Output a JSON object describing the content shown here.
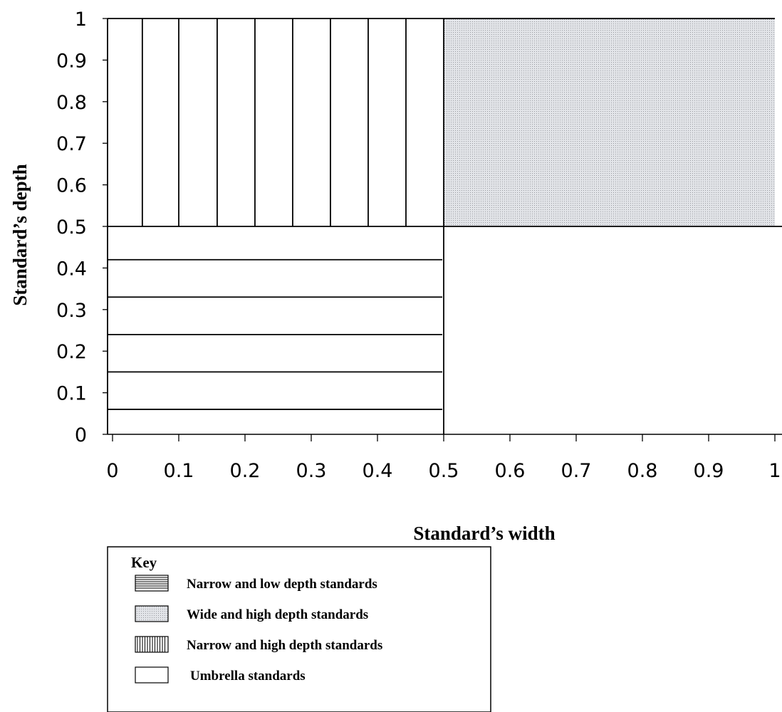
{
  "chart_data": {
    "type": "heatmap",
    "xlabel": "Standard’s width",
    "ylabel": "Standard’s depth",
    "xlim": [
      0,
      1
    ],
    "ylim": [
      0,
      1
    ],
    "x_ticks": [
      {
        "value": 0,
        "label": "0"
      },
      {
        "value": 0.1,
        "label": "0.1"
      },
      {
        "value": 0.2,
        "label": "0.2"
      },
      {
        "value": 0.3,
        "label": "0.3"
      },
      {
        "value": 0.4,
        "label": "0.4"
      },
      {
        "value": 0.5,
        "label": "0.5"
      },
      {
        "value": 0.6,
        "label": "0.6"
      },
      {
        "value": 0.7,
        "label": "0.7"
      },
      {
        "value": 0.8,
        "label": "0.8"
      },
      {
        "value": 0.9,
        "label": "0.9"
      },
      {
        "value": 1,
        "label": "1"
      }
    ],
    "y_ticks": [
      {
        "value": 0,
        "label": "0"
      },
      {
        "value": 0.1,
        "label": "0.1"
      },
      {
        "value": 0.2,
        "label": "0.2"
      },
      {
        "value": 0.3,
        "label": "0.3"
      },
      {
        "value": 0.4,
        "label": "0.4"
      },
      {
        "value": 0.5,
        "label": "0.5"
      },
      {
        "value": 0.6,
        "label": "0.6"
      },
      {
        "value": 0.7,
        "label": "0.7"
      },
      {
        "value": 0.8,
        "label": "0.8"
      },
      {
        "value": 0.9,
        "label": "0.9"
      },
      {
        "value": 1,
        "label": "1"
      }
    ],
    "regions": [
      {
        "category": "Narrow and low depth standards",
        "x": [
          0,
          0.5
        ],
        "y": [
          0,
          0.5
        ],
        "pattern": "horizontal-lines",
        "hatch_values": [
          0.06,
          0.15,
          0.24,
          0.33,
          0.42
        ]
      },
      {
        "category": "Wide and high depth standards",
        "x": [
          0.5,
          1
        ],
        "y": [
          0.5,
          1
        ],
        "pattern": "dotted-grey",
        "color": "#d4d6db"
      },
      {
        "category": "Narrow and high depth standards",
        "x": [
          0,
          0.5
        ],
        "y": [
          0.5,
          1
        ],
        "pattern": "vertical-lines",
        "hatch_values": [
          0.045,
          0.1,
          0.158,
          0.215,
          0.272,
          0.329,
          0.386,
          0.443
        ]
      },
      {
        "category": "Umbrella standards",
        "x": [
          0.5,
          1
        ],
        "y": [
          0,
          0.5
        ],
        "pattern": "blank"
      }
    ],
    "legend": {
      "title": "Key",
      "placement": "bottom-left",
      "items": [
        {
          "label": "Narrow and low depth standards",
          "pattern": "horizontal-lines"
        },
        {
          "label": "Wide and high depth standards",
          "pattern": "dotted-grey"
        },
        {
          "label": "Narrow and high depth standards",
          "pattern": "vertical-lines"
        },
        {
          "label": "Umbrella standards",
          "pattern": "blank"
        }
      ]
    }
  }
}
